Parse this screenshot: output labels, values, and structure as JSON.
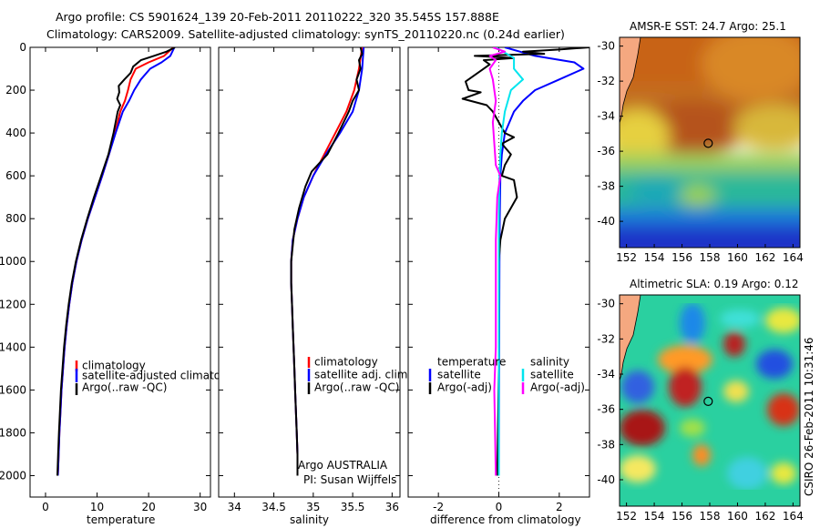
{
  "header": {
    "line1": "Argo profile: CS 5901624_139 20-Feb-2011 20110222_320 35.545S 157.888E",
    "line2": "Climatology: CARS2009. Satellite-adjusted climatology: synTS_20110220.nc (0.24d earlier)"
  },
  "colors": {
    "climatology": "#ff0000",
    "satellite": "#0000ff",
    "argo": "#000000",
    "sat_sal": "#00e5ee",
    "argo_sal": "#ff00ff",
    "land": "#f5a880",
    "border": "#000000"
  },
  "y_ticks": [
    "0",
    "200",
    "400",
    "600",
    "800",
    "1000",
    "1200",
    "1400",
    "1600",
    "1800",
    "2000"
  ],
  "y_tick_values": [
    0,
    200,
    400,
    600,
    800,
    1000,
    1200,
    1400,
    1600,
    1800,
    2000
  ],
  "chart_data": [
    {
      "type": "line",
      "id": "temperature",
      "xlabel": "temperature",
      "xlim": [
        -3,
        32
      ],
      "ylim": [
        0,
        2100
      ],
      "x_ticks": [
        0,
        10,
        20,
        30
      ],
      "x_tick_labels": [
        "0",
        "10",
        "20",
        "30"
      ],
      "legend": [
        "climatology",
        "satellite-adjusted climatology",
        "Argo(..raw -QC)"
      ],
      "series": [
        {
          "name": "climatology",
          "color": "#ff0000",
          "points": [
            [
              24.8,
              0
            ],
            [
              23,
              40
            ],
            [
              20,
              70
            ],
            [
              17.5,
              100
            ],
            [
              16.5,
              150
            ],
            [
              16,
              200
            ],
            [
              15.4,
              250
            ],
            [
              14.5,
              300
            ],
            [
              13.5,
              400
            ],
            [
              12.3,
              500
            ],
            [
              11,
              600
            ],
            [
              9.6,
              700
            ],
            [
              8.2,
              800
            ],
            [
              7,
              900
            ],
            [
              6,
              1000
            ],
            [
              5.2,
              1100
            ],
            [
              4.6,
              1200
            ],
            [
              4.1,
              1300
            ],
            [
              3.7,
              1400
            ],
            [
              3.4,
              1500
            ],
            [
              3.1,
              1600
            ],
            [
              2.9,
              1700
            ],
            [
              2.7,
              1800
            ],
            [
              2.55,
              1900
            ],
            [
              2.4,
              2000
            ]
          ]
        },
        {
          "name": "satellite-adjusted climatology",
          "color": "#0000ff",
          "points": [
            [
              25,
              0
            ],
            [
              24.2,
              40
            ],
            [
              22.5,
              70
            ],
            [
              20.3,
              100
            ],
            [
              18.5,
              150
            ],
            [
              17.2,
              200
            ],
            [
              16.2,
              250
            ],
            [
              15,
              300
            ],
            [
              13.6,
              400
            ],
            [
              12.3,
              500
            ],
            [
              11,
              600
            ],
            [
              9.6,
              700
            ],
            [
              8.2,
              800
            ],
            [
              7,
              900
            ],
            [
              6,
              1000
            ],
            [
              5.2,
              1100
            ],
            [
              4.6,
              1200
            ],
            [
              4.1,
              1300
            ],
            [
              3.7,
              1400
            ],
            [
              3.4,
              1500
            ],
            [
              3.1,
              1600
            ],
            [
              2.9,
              1700
            ],
            [
              2.7,
              1800
            ],
            [
              2.55,
              1900
            ],
            [
              2.4,
              2000
            ]
          ]
        },
        {
          "name": "Argo(..raw -QC)",
          "color": "#000000",
          "points": [
            [
              25.1,
              0
            ],
            [
              23.5,
              20
            ],
            [
              21,
              40
            ],
            [
              18.5,
              60
            ],
            [
              17,
              90
            ],
            [
              16.5,
              120
            ],
            [
              15.3,
              150
            ],
            [
              14.2,
              180
            ],
            [
              14.3,
              210
            ],
            [
              13.9,
              240
            ],
            [
              14.5,
              270
            ],
            [
              14,
              300
            ],
            [
              13.2,
              400
            ],
            [
              12.2,
              500
            ],
            [
              10.8,
              600
            ],
            [
              9.4,
              700
            ],
            [
              8.1,
              800
            ],
            [
              6.9,
              900
            ],
            [
              5.9,
              1000
            ],
            [
              5.1,
              1100
            ],
            [
              4.5,
              1200
            ],
            [
              4,
              1300
            ],
            [
              3.6,
              1400
            ],
            [
              3.3,
              1500
            ],
            [
              3,
              1600
            ],
            [
              2.8,
              1700
            ],
            [
              2.6,
              1800
            ],
            [
              2.45,
              1900
            ],
            [
              2.3,
              2000
            ]
          ]
        }
      ]
    },
    {
      "type": "line",
      "id": "salinity",
      "xlabel": "salinity",
      "xlim": [
        33.8,
        36.1
      ],
      "ylim": [
        0,
        2100
      ],
      "x_ticks": [
        34,
        34.5,
        35,
        35.5,
        36
      ],
      "x_tick_labels": [
        "34",
        "34.5",
        "35",
        "35.5",
        "36"
      ],
      "legend": [
        "climatology",
        "satellite adj. clim.",
        "Argo(..raw -QC)"
      ],
      "credit": [
        "Argo AUSTRALIA",
        "PI: Susan Wijffels"
      ],
      "series": [
        {
          "name": "climatology",
          "color": "#ff0000",
          "points": [
            [
              35.62,
              0
            ],
            [
              35.6,
              50
            ],
            [
              35.58,
              100
            ],
            [
              35.52,
              200
            ],
            [
              35.42,
              300
            ],
            [
              35.28,
              400
            ],
            [
              35.14,
              500
            ],
            [
              35.0,
              600
            ],
            [
              34.88,
              700
            ],
            [
              34.8,
              800
            ],
            [
              34.74,
              900
            ],
            [
              34.72,
              1000
            ],
            [
              34.72,
              1100
            ],
            [
              34.73,
              1200
            ],
            [
              34.74,
              1300
            ],
            [
              34.75,
              1400
            ],
            [
              34.76,
              1500
            ],
            [
              34.77,
              1600
            ],
            [
              34.78,
              1700
            ],
            [
              34.79,
              1800
            ],
            [
              34.8,
              1900
            ],
            [
              34.8,
              2000
            ]
          ]
        },
        {
          "name": "satellite adj. clim.",
          "color": "#0000ff",
          "points": [
            [
              35.64,
              0
            ],
            [
              35.63,
              50
            ],
            [
              35.62,
              100
            ],
            [
              35.58,
              200
            ],
            [
              35.5,
              300
            ],
            [
              35.34,
              400
            ],
            [
              35.16,
              500
            ],
            [
              35.0,
              600
            ],
            [
              34.88,
              700
            ],
            [
              34.8,
              800
            ],
            [
              34.74,
              900
            ],
            [
              34.72,
              1000
            ],
            [
              34.72,
              1100
            ],
            [
              34.73,
              1200
            ],
            [
              34.74,
              1300
            ],
            [
              34.75,
              1400
            ],
            [
              34.76,
              1500
            ],
            [
              34.77,
              1600
            ],
            [
              34.78,
              1700
            ],
            [
              34.79,
              1800
            ],
            [
              34.8,
              1900
            ],
            [
              34.8,
              2000
            ]
          ]
        },
        {
          "name": "Argo(..raw -QC)",
          "color": "#000000",
          "points": [
            [
              35.6,
              0
            ],
            [
              35.62,
              30
            ],
            [
              35.58,
              60
            ],
            [
              35.6,
              100
            ],
            [
              35.55,
              150
            ],
            [
              35.58,
              200
            ],
            [
              35.5,
              250
            ],
            [
              35.45,
              300
            ],
            [
              35.32,
              400
            ],
            [
              35.18,
              500
            ],
            [
              34.98,
              580
            ],
            [
              34.9,
              650
            ],
            [
              34.82,
              750
            ],
            [
              34.76,
              850
            ],
            [
              34.72,
              1000
            ],
            [
              34.72,
              1100
            ],
            [
              34.73,
              1200
            ],
            [
              34.74,
              1300
            ],
            [
              34.75,
              1400
            ],
            [
              34.76,
              1500
            ],
            [
              34.77,
              1600
            ],
            [
              34.78,
              1700
            ],
            [
              34.79,
              1800
            ],
            [
              34.8,
              1900
            ],
            [
              34.8,
              2000
            ]
          ]
        }
      ]
    },
    {
      "type": "line",
      "id": "difference",
      "xlabel": "difference from climatology",
      "xlim": [
        -3,
        3
      ],
      "ylim": [
        0,
        2100
      ],
      "x_ticks": [
        -2,
        0,
        2
      ],
      "x_tick_labels": [
        "-2",
        "0",
        "2"
      ],
      "legend_temperature": [
        "temperature",
        "satellite",
        "Argo(-adj)"
      ],
      "legend_salinity": [
        "salinity",
        "satellite",
        "Argo(-adj)"
      ],
      "series": [
        {
          "name": "temperature satellite",
          "color": "#0000ff",
          "points": [
            [
              0.2,
              0
            ],
            [
              1.2,
              40
            ],
            [
              2.5,
              70
            ],
            [
              2.8,
              100
            ],
            [
              2.0,
              150
            ],
            [
              1.2,
              200
            ],
            [
              0.8,
              250
            ],
            [
              0.5,
              300
            ],
            [
              0.2,
              400
            ],
            [
              0.1,
              500
            ],
            [
              0.05,
              600
            ],
            [
              0.03,
              800
            ],
            [
              0.02,
              1000
            ],
            [
              0.01,
              1500
            ],
            [
              0,
              2000
            ]
          ]
        },
        {
          "name": "temperature Argo(-adj)",
          "color": "#000000",
          "points": [
            [
              3,
              0
            ],
            [
              2,
              10
            ],
            [
              0.8,
              20
            ],
            [
              1.5,
              30
            ],
            [
              -0.8,
              40
            ],
            [
              0.5,
              50
            ],
            [
              -0.5,
              60
            ],
            [
              -0.3,
              80
            ],
            [
              -1.1,
              160
            ],
            [
              -1.0,
              200
            ],
            [
              -0.6,
              210
            ],
            [
              -1.2,
              240
            ],
            [
              -0.4,
              270
            ],
            [
              -0.2,
              300
            ],
            [
              0.2,
              400
            ],
            [
              0.5,
              420
            ],
            [
              0.1,
              450
            ],
            [
              0.4,
              500
            ],
            [
              0.2,
              550
            ],
            [
              0.1,
              600
            ],
            [
              0.5,
              620
            ],
            [
              0.6,
              700
            ],
            [
              0.2,
              800
            ],
            [
              0.05,
              900
            ],
            [
              0,
              1000
            ],
            [
              0,
              1500
            ],
            [
              -0.05,
              2000
            ]
          ]
        },
        {
          "name": "salinity satellite",
          "color": "#00e5ee",
          "points": [
            [
              -0.1,
              0
            ],
            [
              0.5,
              50
            ],
            [
              0.5,
              100
            ],
            [
              0.8,
              150
            ],
            [
              0.4,
              200
            ],
            [
              0.2,
              300
            ],
            [
              0.1,
              400
            ],
            [
              0.05,
              500
            ],
            [
              0.02,
              600
            ],
            [
              0,
              800
            ],
            [
              0,
              2000
            ]
          ]
        },
        {
          "name": "salinity Argo(-adj)",
          "color": "#ff00ff",
          "points": [
            [
              -0.2,
              0
            ],
            [
              0.2,
              20
            ],
            [
              -0.3,
              40
            ],
            [
              -0.1,
              60
            ],
            [
              -0.3,
              100
            ],
            [
              -0.2,
              150
            ],
            [
              -0.1,
              250
            ],
            [
              -0.2,
              350
            ],
            [
              -0.1,
              550
            ],
            [
              0.05,
              600
            ],
            [
              -0.05,
              700
            ],
            [
              -0.1,
              900
            ],
            [
              -0.1,
              1400
            ],
            [
              -0.15,
              1600
            ],
            [
              -0.1,
              2000
            ]
          ]
        }
      ]
    }
  ],
  "maps": [
    {
      "id": "sst",
      "title": "AMSR-E SST: 24.7  Argo: 25.1",
      "lon_ticks": [
        "152",
        "154",
        "156",
        "158",
        "160",
        "162",
        "164"
      ],
      "lat_ticks": [
        "-30",
        "-32",
        "-34",
        "-36",
        "-38",
        "-40"
      ],
      "lon_values": [
        152,
        154,
        156,
        158,
        160,
        162,
        164
      ],
      "lat_values": [
        -30,
        -32,
        -34,
        -36,
        -38,
        -40
      ],
      "lon_range": [
        151.5,
        164.5
      ],
      "lat_range": [
        -29.5,
        -41.5
      ],
      "marker": [
        157.888,
        -35.545
      ]
    },
    {
      "id": "sla",
      "title": "Altimetric SLA: 0.19  Argo: 0.12",
      "lon_ticks": [
        "152",
        "154",
        "156",
        "158",
        "160",
        "162",
        "164"
      ],
      "lat_ticks": [
        "-30",
        "-32",
        "-34",
        "-36",
        "-38",
        "-40"
      ],
      "lon_values": [
        152,
        154,
        156,
        158,
        160,
        162,
        164
      ],
      "lat_values": [
        -30,
        -32,
        -34,
        -36,
        -38,
        -40
      ],
      "lon_range": [
        151.5,
        164.5
      ],
      "lat_range": [
        -29.5,
        -41.5
      ],
      "marker": [
        157.888,
        -35.545
      ]
    }
  ],
  "side_label": "CSIRO 26-Feb-2011 10:31:46"
}
